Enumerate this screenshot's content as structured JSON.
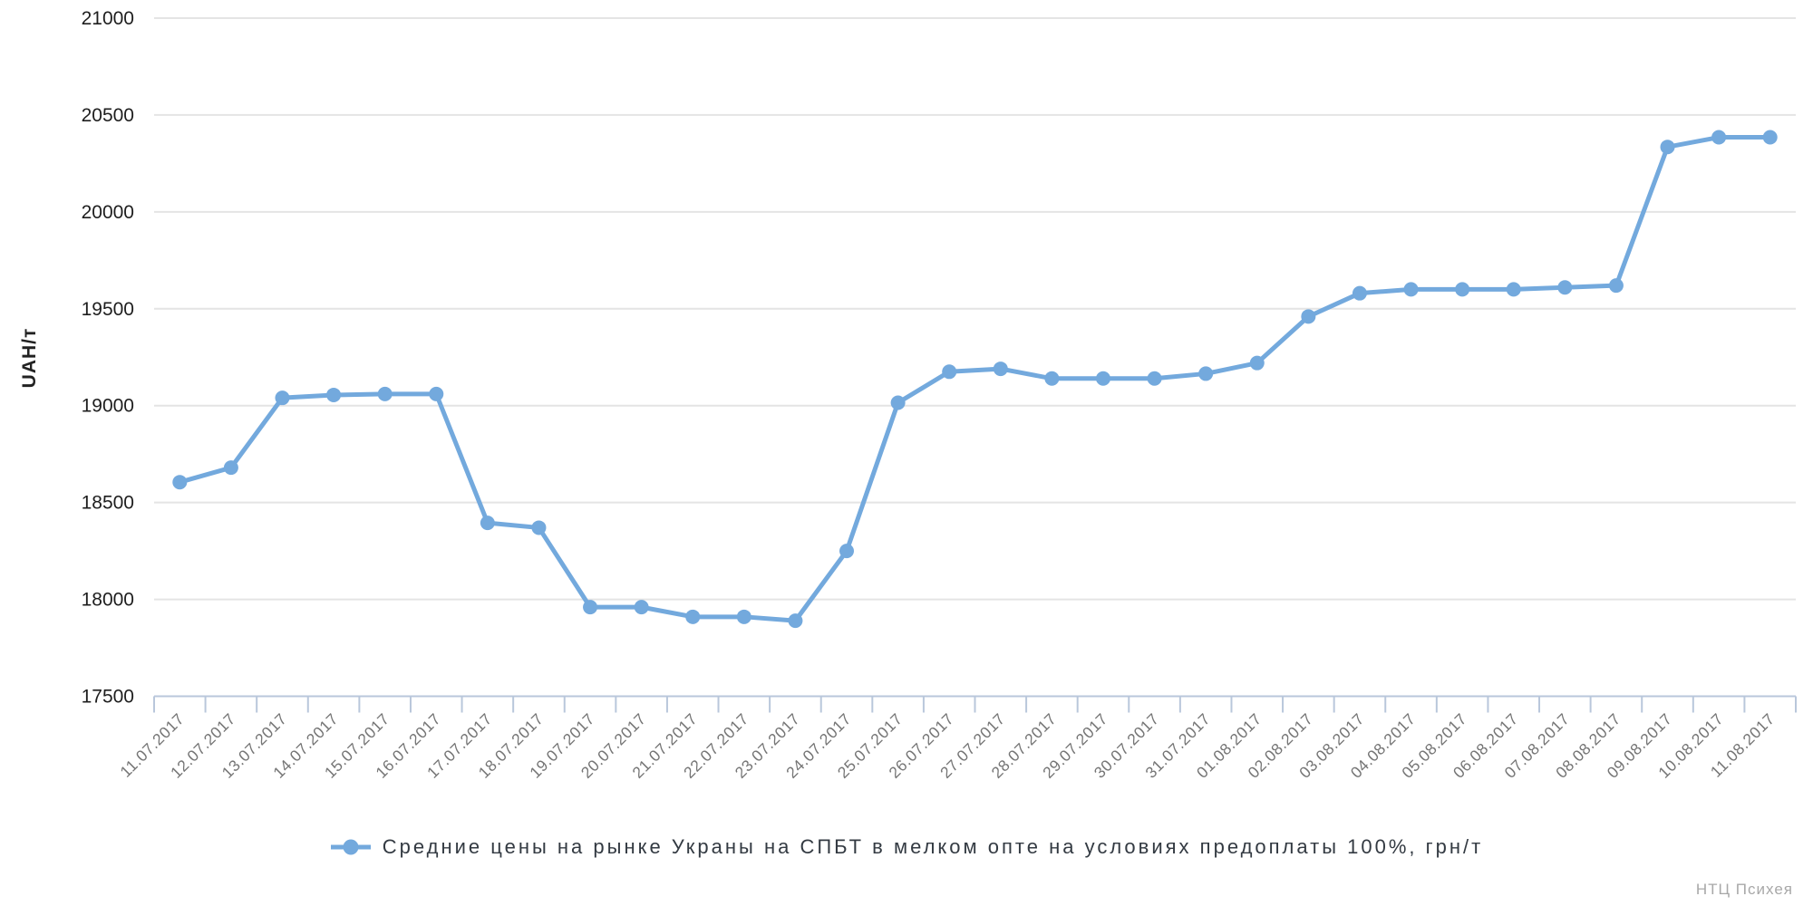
{
  "chart_data": {
    "type": "line",
    "title": "",
    "xlabel": "",
    "ylabel": "UAH/т",
    "ylim": [
      17500,
      21000
    ],
    "y_ticks": [
      17500,
      18000,
      18500,
      19000,
      19500,
      20000,
      20500,
      21000
    ],
    "grid": "horizontal",
    "legend_position": "bottom",
    "x": [
      "11.07.2017",
      "12.07.2017",
      "13.07.2017",
      "14.07.2017",
      "15.07.2017",
      "16.07.2017",
      "17.07.2017",
      "18.07.2017",
      "19.07.2017",
      "20.07.2017",
      "21.07.2017",
      "22.07.2017",
      "23.07.2017",
      "24.07.2017",
      "25.07.2017",
      "26.07.2017",
      "27.07.2017",
      "28.07.2017",
      "29.07.2017",
      "30.07.2017",
      "31.07.2017",
      "01.08.2017",
      "02.08.2017",
      "03.08.2017",
      "04.08.2017",
      "05.08.2017",
      "06.08.2017",
      "07.08.2017",
      "08.08.2017",
      "09.08.2017",
      "10.08.2017",
      "11.08.2017"
    ],
    "series": [
      {
        "name": "Средние цены на рынке Украны на СПБТ в мелком опте на условиях предоплаты 100%, грн/т",
        "color": "#73a9dd",
        "values": [
          18605,
          18680,
          19040,
          19055,
          19060,
          19060,
          18395,
          18370,
          17960,
          17960,
          17910,
          17910,
          17890,
          18250,
          19015,
          19175,
          19190,
          19140,
          19140,
          19140,
          19165,
          19220,
          19460,
          19580,
          19600,
          19600,
          19600,
          19610,
          19620,
          20335,
          20385,
          20385
        ]
      }
    ]
  },
  "watermark": "НТЦ Психея",
  "colors": {
    "line": "#73a9dd",
    "gridline": "#e4e4e4",
    "axis": "#b9c7db",
    "y_tick_label": "#1e1e1e",
    "x_tick_label": "#757575",
    "legend_text": "#333a42",
    "watermark": "#a8a8a8"
  }
}
